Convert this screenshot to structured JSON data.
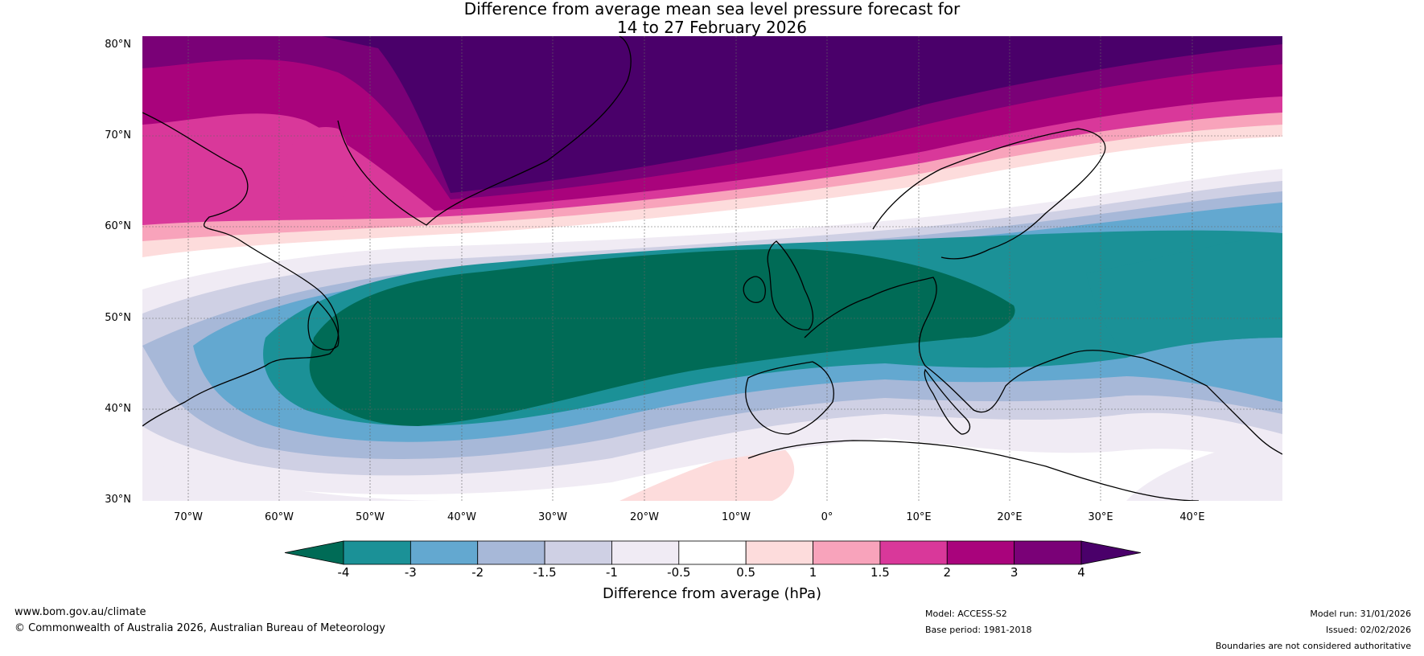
{
  "title": {
    "line1": "Difference from average mean sea level pressure forecast for",
    "line2": "14 to 27 February 2026"
  },
  "map": {
    "region": "North Atlantic and Europe",
    "lat_labels": [
      "80°N",
      "70°N",
      "60°N",
      "50°N",
      "40°N",
      "30°N"
    ],
    "lon_labels": [
      "70°W",
      "60°W",
      "50°W",
      "40°W",
      "30°W",
      "20°W",
      "10°W",
      "0°",
      "10°E",
      "20°E",
      "30°E",
      "40°E"
    ],
    "colors": {
      "lt_m4": "#006b56",
      "m4_m3": "#1b9197",
      "m3_m2": "#63a8d0",
      "m2_m15": "#a7b8d8",
      "m15_m1": "#cfd0e4",
      "m1_m05": "#f0ebf4",
      "m05_05": "#ffffff",
      "p05_1": "#fddcdc",
      "p1_15": "#f8a3bb",
      "p15_2": "#d9389a",
      "p2_3": "#a9037c",
      "p3_4": "#7a0177",
      "gt_4": "#4a006a"
    }
  },
  "colorbar": {
    "ticks": [
      "-4",
      "-3",
      "-2",
      "-1.5",
      "-1",
      "-0.5",
      "0.5",
      "1",
      "1.5",
      "2",
      "3",
      "4"
    ],
    "label": "Difference from average (hPa)",
    "colors": [
      "#006b56",
      "#1b9197",
      "#63a8d0",
      "#a7b8d8",
      "#cfd0e4",
      "#f0ebf4",
      "#ffffff",
      "#fddcdc",
      "#f8a3bb",
      "#d9389a",
      "#a9037c",
      "#7a0177",
      "#4a006a"
    ]
  },
  "footer": {
    "website": "www.bom.gov.au/climate",
    "copyright": "© Commonwealth of Australia 2026, Australian Bureau of Meteorology",
    "model": "Model: ACCESS-S2",
    "base_period": "Base period: 1981-2018",
    "model_run": "Model run: 31/01/2026",
    "issued": "Issued: 02/02/2026",
    "disclaimer": "Boundaries are not considered authoritative"
  }
}
